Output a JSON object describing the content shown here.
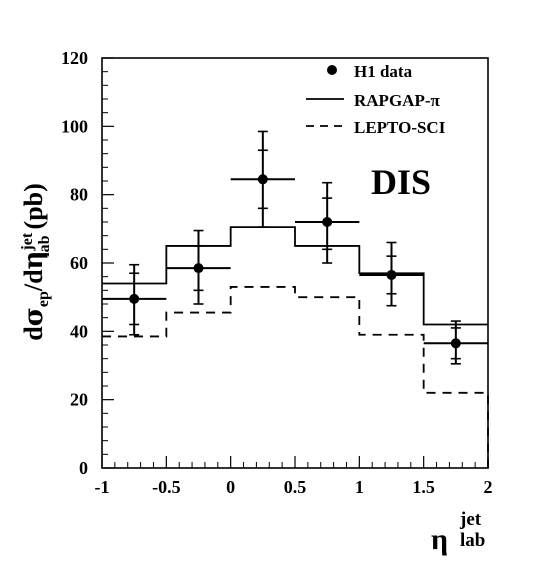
{
  "chart_data": {
    "type": "line",
    "xlim": [
      -1,
      2
    ],
    "ylim": [
      0,
      120
    ],
    "x_ticks": [
      -1,
      -0.5,
      0,
      0.5,
      1,
      1.5,
      2
    ],
    "x_tick_labels": [
      "-1",
      "-0.5",
      "0",
      "0.5",
      "1",
      "1.5",
      "2"
    ],
    "y_ticks": [
      0,
      20,
      40,
      60,
      80,
      100,
      120
    ],
    "y_tick_labels": [
      "0",
      "20",
      "40",
      "60",
      "80",
      "100",
      "120"
    ],
    "annotation": "DIS",
    "ylabel": {
      "prefix": "d",
      "sigma": "σ",
      "sub1": "ep",
      "mid": "/d",
      "eta": "η",
      "sup": "jet",
      "sub2": "lab",
      "unit": "(pb)"
    },
    "xlabel": {
      "eta": "η",
      "sup": "jet",
      "sub": "lab"
    },
    "legend": {
      "data": "H1 data",
      "rapgap": "RAPGAP-π",
      "lepto": "LEPTO-SCI"
    },
    "bin_edges": [
      -1,
      -0.5,
      0,
      0.5,
      1,
      1.5,
      2
    ],
    "series": [
      {
        "name": "H1 data",
        "style": "points",
        "x": [
          -0.75,
          -0.25,
          0.25,
          0.75,
          1.25,
          1.75
        ],
        "y": [
          49.5,
          58.5,
          84.5,
          72,
          56.5,
          36.5
        ],
        "xerr": 0.25,
        "yerr_stat": [
          [
            42,
            57
          ],
          [
            52,
            65
          ],
          [
            76,
            93
          ],
          [
            64,
            79
          ],
          [
            51,
            62
          ],
          [
            32,
            41
          ]
        ],
        "yerr_tot": [
          [
            39,
            59.5
          ],
          [
            48,
            69.5
          ],
          [
            70.5,
            98.5
          ],
          [
            60,
            83.5
          ],
          [
            47.5,
            66
          ],
          [
            30.5,
            43
          ]
        ]
      },
      {
        "name": "RAPGAP-π",
        "style": "solid-histogram",
        "values": [
          54,
          65,
          70.5,
          65,
          57,
          42
        ]
      },
      {
        "name": "LEPTO-SCI",
        "style": "dashed-histogram",
        "values": [
          38.5,
          45.5,
          53,
          50,
          39,
          22
        ]
      }
    ],
    "colors": {
      "ink": "#000000",
      "background": "#ffffff"
    }
  }
}
